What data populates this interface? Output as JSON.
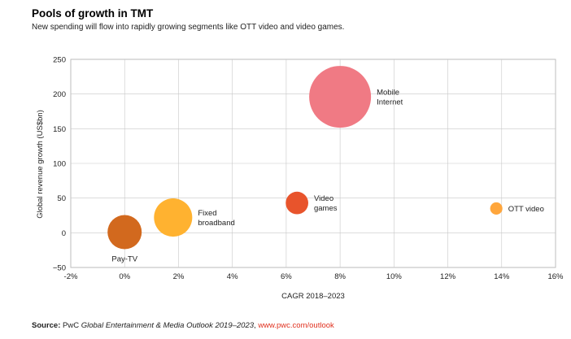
{
  "title": "Pools of growth in TMT",
  "subtitle": "New spending will flow into rapidly growing segments like OTT video and video games.",
  "source": {
    "prefix": "Source:",
    "publisher": "PwC",
    "publication": "Global Entertainment & Media Outlook 2019–2023",
    "separator": ",",
    "url": "www.pwc.com/outlook"
  },
  "chart_data": {
    "type": "scatter",
    "bubble": true,
    "xlabel": "CAGR 2018–2023",
    "ylabel": "Global revenue growth (US$bn)",
    "xlim": [
      -2,
      16
    ],
    "ylim": [
      -50,
      250
    ],
    "x_ticks": [
      {
        "value": -2,
        "label": "-2%"
      },
      {
        "value": 0,
        "label": "0%"
      },
      {
        "value": 2,
        "label": "2%"
      },
      {
        "value": 4,
        "label": "4%"
      },
      {
        "value": 6,
        "label": "6%"
      },
      {
        "value": 8,
        "label": "8%"
      },
      {
        "value": 10,
        "label": "10%"
      },
      {
        "value": 12,
        "label": "12%"
      },
      {
        "value": 14,
        "label": "14%"
      },
      {
        "value": 16,
        "label": "16%"
      }
    ],
    "y_ticks": [
      {
        "value": 250,
        "label": "250"
      },
      {
        "value": 200,
        "label": "200"
      },
      {
        "value": 150,
        "label": "150"
      },
      {
        "value": 100,
        "label": "100"
      },
      {
        "value": 50,
        "label": "50"
      },
      {
        "value": 0,
        "label": "0"
      },
      {
        "value": -50,
        "label": "−50"
      }
    ],
    "grid": true,
    "points": [
      {
        "label": [
          "Pay-TV"
        ],
        "x": 0.0,
        "y": 1,
        "size": 1.0,
        "color": "#d2691e",
        "label_pos": "below"
      },
      {
        "label": [
          "Fixed",
          "broadband"
        ],
        "x": 1.8,
        "y": 22,
        "size": 1.12,
        "color": "#ffb230",
        "label_pos": "right"
      },
      {
        "label": [
          "Video",
          "games"
        ],
        "x": 6.4,
        "y": 43,
        "size": 0.66,
        "color": "#e8542c",
        "label_pos": "right"
      },
      {
        "label": [
          "Mobile",
          "Internet"
        ],
        "x": 8.0,
        "y": 196,
        "size": 1.81,
        "color": "#f07a84",
        "label_pos": "right"
      },
      {
        "label": [
          "OTT video"
        ],
        "x": 13.8,
        "y": 35,
        "size": 0.36,
        "color": "#ffa63c",
        "label_pos": "right"
      }
    ]
  }
}
